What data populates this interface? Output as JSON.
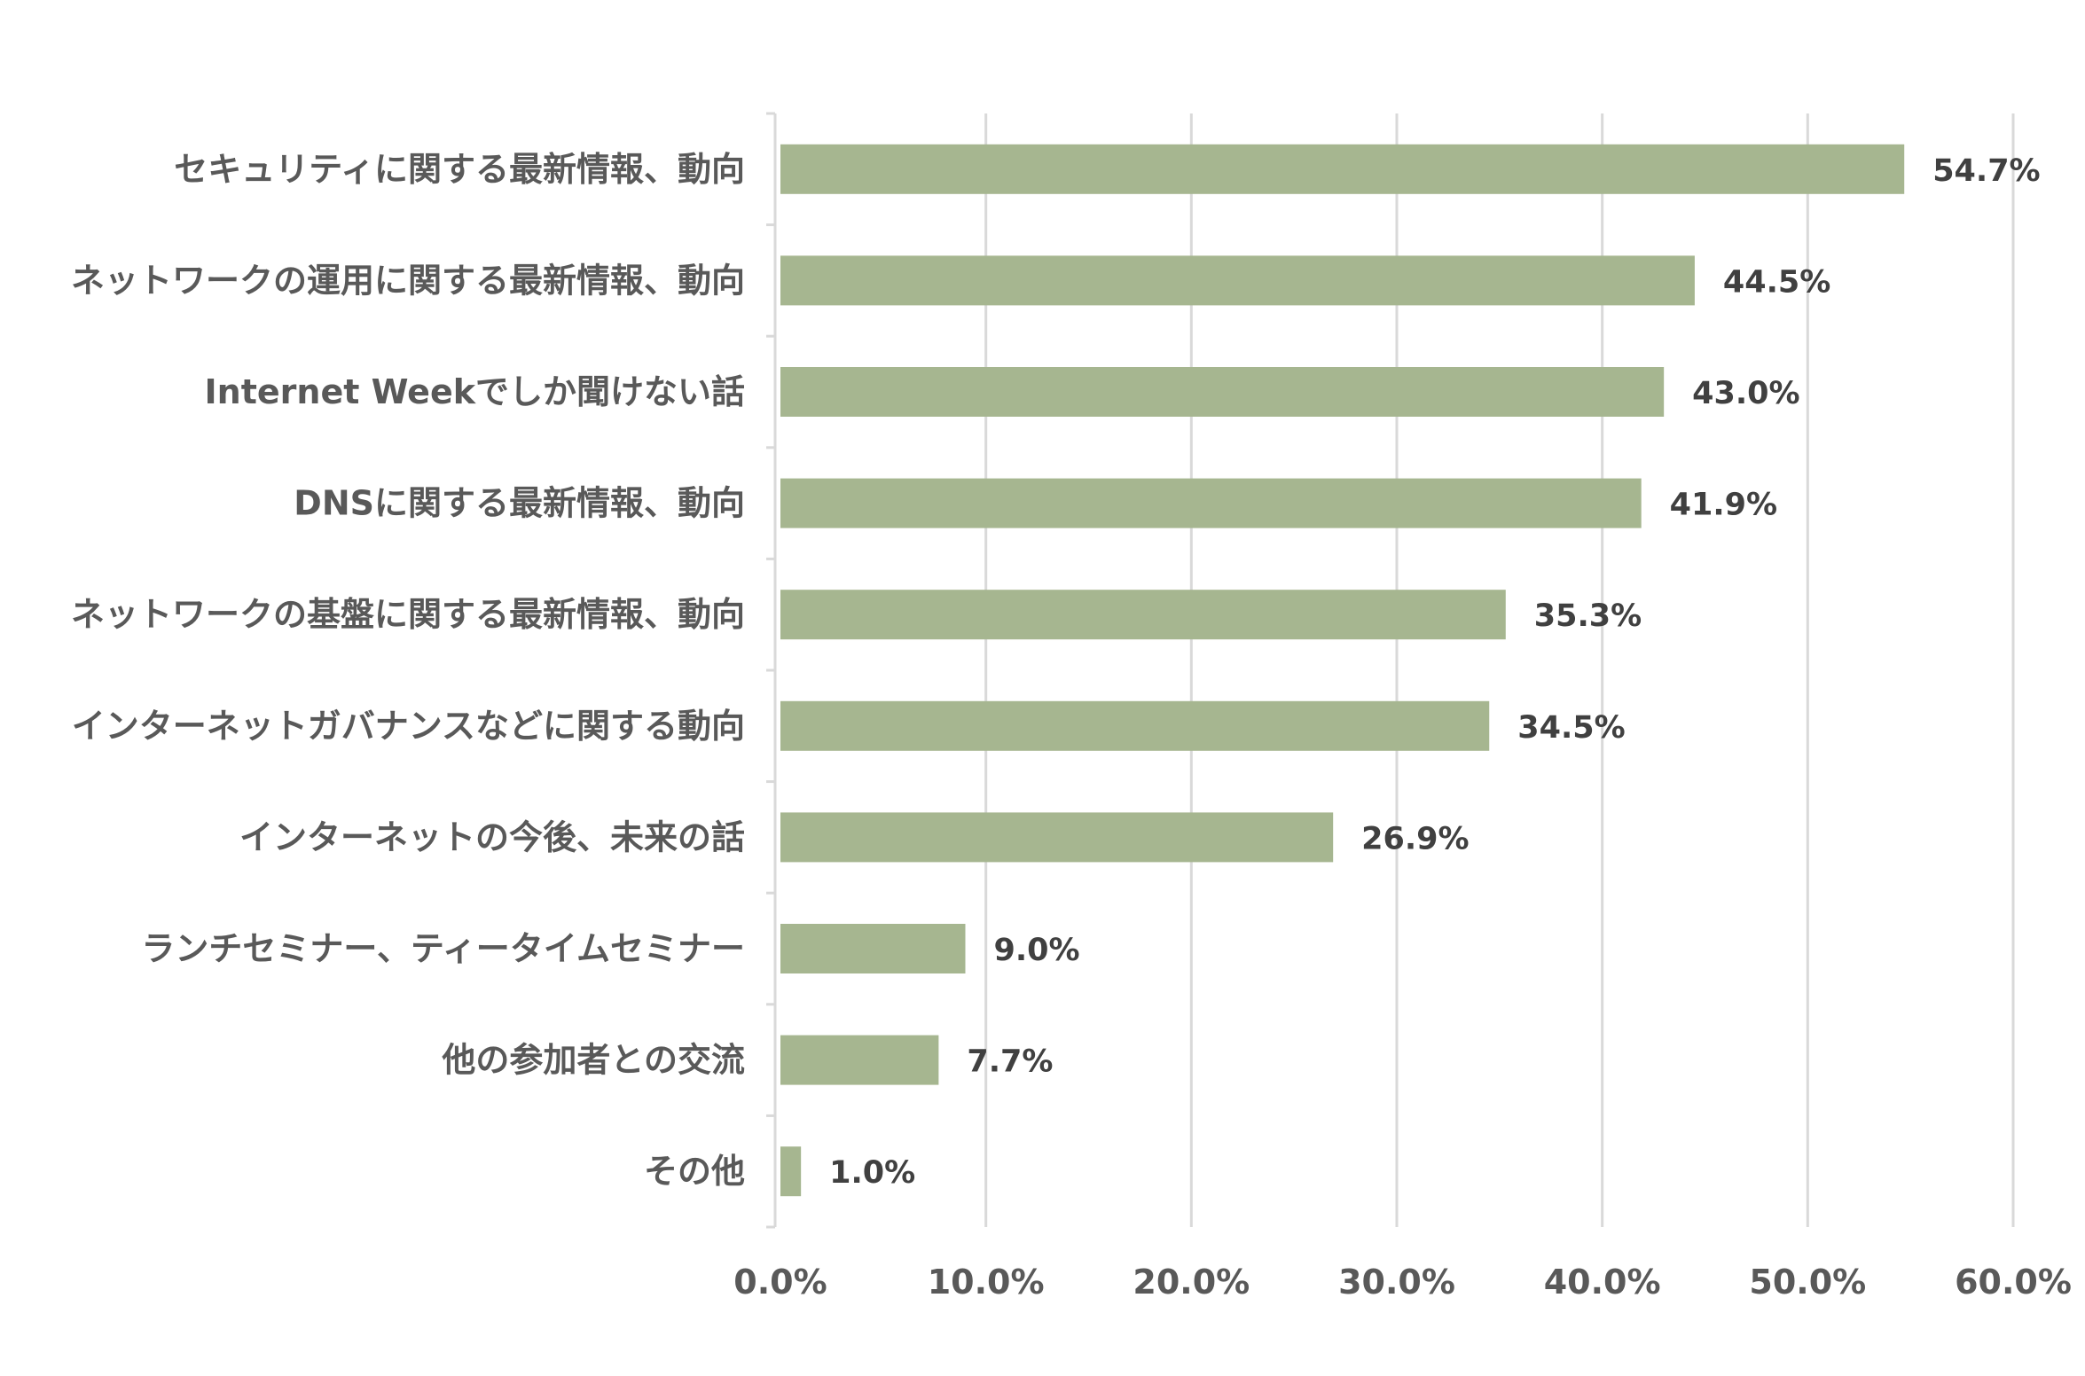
{
  "chart_data": {
    "type": "bar",
    "orientation": "horizontal",
    "categories": [
      "セキュリティに関する最新情報、動向",
      "ネットワークの運用に関する最新情報、動向",
      "Internet Weekでしか聞けない話",
      "DNSに関する最新情報、動向",
      "ネットワークの基盤に関する最新情報、動向",
      "インターネットガバナンスなどに関する動向",
      "インターネットの今後、未来の話",
      "ランチセミナー、ティータイムセミナー",
      "他の参加者との交流",
      "その他"
    ],
    "values": [
      54.7,
      44.5,
      43.0,
      41.9,
      35.3,
      34.5,
      26.9,
      9.0,
      7.7,
      1.0
    ],
    "value_labels": [
      "54.7%",
      "44.5%",
      "43.0%",
      "41.9%",
      "35.3%",
      "34.5%",
      "26.9%",
      "9.0%",
      "7.7%",
      "1.0%"
    ],
    "xlim": [
      0,
      60
    ],
    "x_ticks": [
      0,
      10,
      20,
      30,
      40,
      50,
      60
    ],
    "x_tick_labels": [
      "0.0%",
      "10.0%",
      "20.0%",
      "30.0%",
      "40.0%",
      "50.0%",
      "60.0%"
    ],
    "title": "",
    "xlabel": "",
    "ylabel": "",
    "grid": true,
    "legend": "none",
    "colors": {
      "bar": "#a6b690",
      "grid": "#d9d9d9",
      "axis": "#d9d9d9",
      "category_text": "#595959",
      "value_text": "#404040",
      "tick_text": "#595959"
    }
  }
}
